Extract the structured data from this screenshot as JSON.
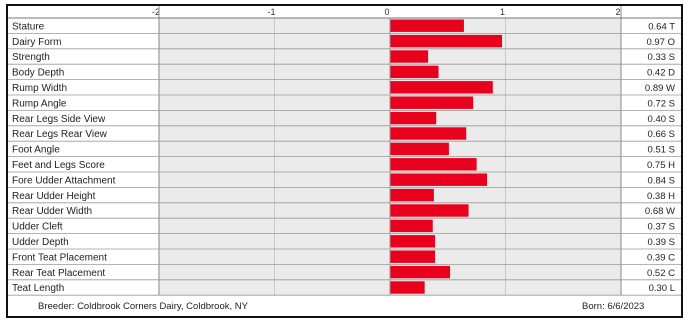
{
  "chart_data": {
    "type": "bar",
    "orientation": "horizontal",
    "xlim": [
      -2,
      2
    ],
    "xticks": [
      "-2",
      "-1",
      "0",
      "1",
      "2"
    ],
    "bar_color": "#e8001c",
    "categories": [
      "Stature",
      "Dairy Form",
      "Strength",
      "Body Depth",
      "Rump Width",
      "Rump Angle",
      "Rear Legs Side View",
      "Rear Legs Rear View",
      "Foot Angle",
      "Feet and Legs Score",
      "Fore Udder Attachment",
      "Rear Udder Height",
      "Rear Udder Width",
      "Udder Cleft",
      "Udder Depth",
      "Front Teat Placement",
      "Rear Teat Placement",
      "Teat Length"
    ],
    "values": [
      0.64,
      0.97,
      0.33,
      0.42,
      0.89,
      0.72,
      0.4,
      0.66,
      0.51,
      0.75,
      0.84,
      0.38,
      0.68,
      0.37,
      0.39,
      0.39,
      0.52,
      0.3
    ],
    "value_labels": [
      "0.64 T",
      "0.97 O",
      "0.33 S",
      "0.42 D",
      "0.89 W",
      "0.72 S",
      "0.40 S",
      "0.66 S",
      "0.51 S",
      "0.75 H",
      "0.84 S",
      "0.38 H",
      "0.68 W",
      "0.37 S",
      "0.39 S",
      "0.39 C",
      "0.52 C",
      "0.30 L"
    ]
  },
  "footer": {
    "breeder": "Breeder: Coldbrook Corners Dairy, Coldbrook, NY",
    "born": "Born: 6/6/2023"
  }
}
